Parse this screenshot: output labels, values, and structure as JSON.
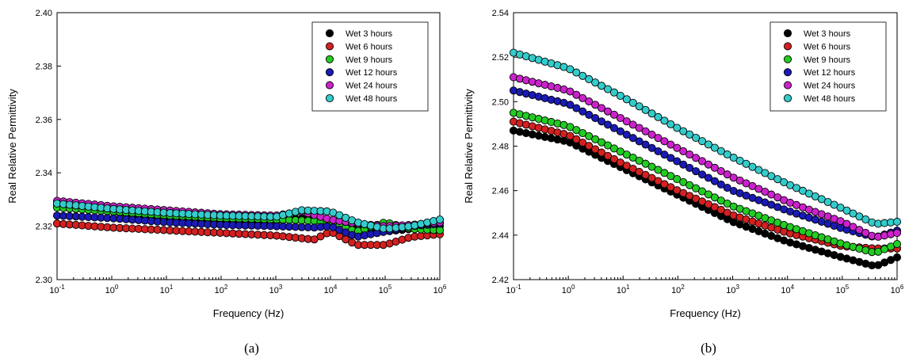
{
  "chart_data": [
    {
      "id": "a",
      "type": "scatter",
      "caption": "(a)",
      "xlabel": "Frequency (Hz)",
      "ylabel": "Real Relative Permittivity",
      "xscale": "log",
      "xlim": [
        0.1,
        1000000
      ],
      "ylim": [
        2.3,
        2.4
      ],
      "xticks": [
        0.1,
        1,
        10,
        100,
        1000,
        10000,
        100000,
        1000000
      ],
      "xtick_labels": [
        {
          "base": "10",
          "exp": "-1"
        },
        {
          "base": "10",
          "exp": "0"
        },
        {
          "base": "10",
          "exp": "1"
        },
        {
          "base": "10",
          "exp": "2"
        },
        {
          "base": "10",
          "exp": "3"
        },
        {
          "base": "10",
          "exp": "4"
        },
        {
          "base": "10",
          "exp": "5"
        },
        {
          "base": "10",
          "exp": "6"
        }
      ],
      "yticks": [
        "2.30",
        "2.32",
        "2.34",
        "2.36",
        "2.38",
        "2.40"
      ],
      "legend_position": "top-right",
      "grid": false,
      "series": [
        {
          "name": "Wet 3 hours",
          "color": "#000000",
          "points": [
            [
              0.1,
              2.328
            ],
            [
              1,
              2.3255
            ],
            [
              10,
              2.3225
            ],
            [
              100,
              2.321
            ],
            [
              1000,
              2.322
            ],
            [
              3000,
              2.323
            ],
            [
              10000,
              2.3225
            ],
            [
              20000,
              2.32
            ],
            [
              50000,
              2.319
            ],
            [
              100000,
              2.318
            ],
            [
              300000,
              2.319
            ],
            [
              1000000,
              2.32
            ]
          ]
        },
        {
          "name": "Wet 6 hours",
          "color": "#d42020",
          "points": [
            [
              0.1,
              2.321
            ],
            [
              1,
              2.3195
            ],
            [
              10,
              2.3185
            ],
            [
              100,
              2.3175
            ],
            [
              1000,
              2.3165
            ],
            [
              5000,
              2.315
            ],
            [
              10000,
              2.318
            ],
            [
              30000,
              2.313
            ],
            [
              100000,
              2.313
            ],
            [
              300000,
              2.316
            ],
            [
              1000000,
              2.317
            ]
          ]
        },
        {
          "name": "Wet 9 hours",
          "color": "#22cc22",
          "points": [
            [
              0.1,
              2.327
            ],
            [
              1,
              2.3255
            ],
            [
              10,
              2.324
            ],
            [
              100,
              2.323
            ],
            [
              1000,
              2.3225
            ],
            [
              5000,
              2.322
            ],
            [
              10000,
              2.3215
            ],
            [
              30000,
              2.318
            ],
            [
              100000,
              2.3215
            ],
            [
              300000,
              2.319
            ],
            [
              1000000,
              2.3185
            ]
          ]
        },
        {
          "name": "Wet 12 hours",
          "color": "#1a1ab4",
          "points": [
            [
              0.1,
              2.324
            ],
            [
              1,
              2.323
            ],
            [
              10,
              2.3215
            ],
            [
              100,
              2.3205
            ],
            [
              1000,
              2.32
            ],
            [
              5000,
              2.3195
            ],
            [
              10000,
              2.32
            ],
            [
              30000,
              2.316
            ],
            [
              100000,
              2.318
            ],
            [
              300000,
              2.32
            ],
            [
              1000000,
              2.321
            ]
          ]
        },
        {
          "name": "Wet 24 hours",
          "color": "#cc22cc",
          "points": [
            [
              0.1,
              2.3295
            ],
            [
              1,
              2.3275
            ],
            [
              10,
              2.326
            ],
            [
              100,
              2.3245
            ],
            [
              1000,
              2.324
            ],
            [
              3000,
              2.3255
            ],
            [
              10000,
              2.3225
            ],
            [
              30000,
              2.321
            ],
            [
              100000,
              2.32
            ],
            [
              300000,
              2.3205
            ],
            [
              1000000,
              2.3215
            ]
          ]
        },
        {
          "name": "Wet 48 hours",
          "color": "#33cccc",
          "points": [
            [
              0.1,
              2.3285
            ],
            [
              1,
              2.3265
            ],
            [
              10,
              2.325
            ],
            [
              100,
              2.324
            ],
            [
              1000,
              2.3235
            ],
            [
              3000,
              2.326
            ],
            [
              10000,
              2.3255
            ],
            [
              30000,
              2.3215
            ],
            [
              100000,
              2.319
            ],
            [
              300000,
              2.32
            ],
            [
              1000000,
              2.3225
            ]
          ]
        }
      ]
    },
    {
      "id": "b",
      "type": "scatter",
      "caption": "(b)",
      "xlabel": "Frequency (Hz)",
      "ylabel": "Real Relative Permittivity",
      "xscale": "log",
      "xlim": [
        0.1,
        1000000
      ],
      "ylim": [
        2.42,
        2.54
      ],
      "xticks": [
        0.1,
        1,
        10,
        100,
        1000,
        10000,
        100000,
        1000000
      ],
      "xtick_labels": [
        {
          "base": "10",
          "exp": "-1"
        },
        {
          "base": "10",
          "exp": "0"
        },
        {
          "base": "10",
          "exp": "1"
        },
        {
          "base": "10",
          "exp": "2"
        },
        {
          "base": "10",
          "exp": "3"
        },
        {
          "base": "10",
          "exp": "4"
        },
        {
          "base": "10",
          "exp": "5"
        },
        {
          "base": "10",
          "exp": "6"
        }
      ],
      "yticks": [
        "2.42",
        "2.44",
        "2.46",
        "2.48",
        "2.50",
        "2.52",
        "2.54"
      ],
      "legend_position": "top-right",
      "grid": false,
      "series": [
        {
          "name": "Wet 3 hours",
          "color": "#000000",
          "points": [
            [
              0.1,
              2.487
            ],
            [
              1,
              2.482
            ],
            [
              10,
              2.47
            ],
            [
              100,
              2.458
            ],
            [
              1000,
              2.446
            ],
            [
              10000,
              2.437
            ],
            [
              100000,
              2.43
            ],
            [
              400000,
              2.426
            ],
            [
              1000000,
              2.43
            ]
          ]
        },
        {
          "name": "Wet 6 hours",
          "color": "#d42020",
          "points": [
            [
              0.1,
              2.491
            ],
            [
              1,
              2.485
            ],
            [
              10,
              2.472
            ],
            [
              100,
              2.46
            ],
            [
              1000,
              2.449
            ],
            [
              10000,
              2.441
            ],
            [
              100000,
              2.435
            ],
            [
              400000,
              2.434
            ],
            [
              1000000,
              2.434
            ]
          ]
        },
        {
          "name": "Wet 9 hours",
          "color": "#22cc22",
          "points": [
            [
              0.1,
              2.495
            ],
            [
              1,
              2.489
            ],
            [
              10,
              2.477
            ],
            [
              100,
              2.465
            ],
            [
              1000,
              2.453
            ],
            [
              10000,
              2.444
            ],
            [
              100000,
              2.436
            ],
            [
              400000,
              2.432
            ],
            [
              1000000,
              2.436
            ]
          ]
        },
        {
          "name": "Wet 12 hours",
          "color": "#1a1ab4",
          "points": [
            [
              0.1,
              2.505
            ],
            [
              1,
              2.499
            ],
            [
              10,
              2.486
            ],
            [
              100,
              2.473
            ],
            [
              1000,
              2.46
            ],
            [
              10000,
              2.451
            ],
            [
              100000,
              2.443
            ],
            [
              400000,
              2.439
            ],
            [
              1000000,
              2.442
            ]
          ]
        },
        {
          "name": "Wet 24 hours",
          "color": "#cc22cc",
          "points": [
            [
              0.1,
              2.511
            ],
            [
              1,
              2.505
            ],
            [
              10,
              2.492
            ],
            [
              100,
              2.479
            ],
            [
              1000,
              2.466
            ],
            [
              10000,
              2.455
            ],
            [
              100000,
              2.446
            ],
            [
              400000,
              2.439
            ],
            [
              1000000,
              2.441
            ]
          ]
        },
        {
          "name": "Wet 48 hours",
          "color": "#33cccc",
          "points": [
            [
              0.1,
              2.522
            ],
            [
              1,
              2.515
            ],
            [
              10,
              2.502
            ],
            [
              100,
              2.488
            ],
            [
              1000,
              2.475
            ],
            [
              10000,
              2.463
            ],
            [
              100000,
              2.452
            ],
            [
              400000,
              2.445
            ],
            [
              1000000,
              2.446
            ]
          ]
        }
      ]
    }
  ]
}
